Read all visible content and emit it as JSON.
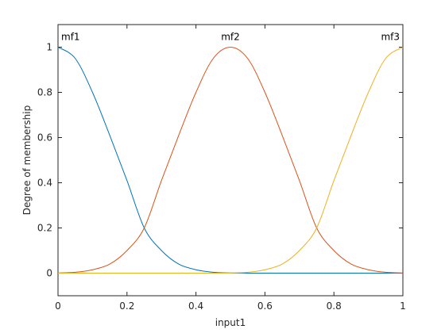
{
  "chart_data": {
    "type": "line",
    "xlabel": "input1",
    "ylabel": "Degree of membership",
    "xlim": [
      0,
      1
    ],
    "ylim": [
      -0.1,
      1.1
    ],
    "grid": false,
    "x_ticks": [
      0,
      0.2,
      0.4,
      0.6,
      0.8,
      1
    ],
    "x_tick_labels": [
      "0",
      "0.2",
      "0.4",
      "0.6",
      "0.8",
      "1"
    ],
    "y_ticks": [
      0,
      0.2,
      0.4,
      0.6,
      0.8,
      1
    ],
    "y_tick_labels": [
      "0",
      "0.2",
      "0.4",
      "0.6",
      "0.8",
      "1"
    ],
    "x": [
      0,
      0.05,
      0.1,
      0.15,
      0.2,
      0.25,
      0.3,
      0.35,
      0.4,
      0.45,
      0.5,
      0.55,
      0.6,
      0.65,
      0.7,
      0.75,
      0.8,
      0.85,
      0.9,
      0.95,
      1
    ],
    "series": [
      {
        "name": "mf1",
        "color": "#0072BD",
        "label_x": 0,
        "values": [
          1.0,
          0.95,
          0.8,
          0.61,
          0.41,
          0.2,
          0.1,
          0.04,
          0.015,
          0.004,
          0.001,
          0.0,
          0.0,
          0.0,
          0.0,
          0.0,
          0.0,
          0.0,
          0.0,
          0.0,
          0.0
        ]
      },
      {
        "name": "mf2",
        "color": "#D95319",
        "label_x": 0.5,
        "values": [
          0.001,
          0.004,
          0.015,
          0.04,
          0.1,
          0.2,
          0.41,
          0.61,
          0.8,
          0.95,
          1.0,
          0.95,
          0.8,
          0.61,
          0.41,
          0.2,
          0.1,
          0.04,
          0.015,
          0.004,
          0.001
        ]
      },
      {
        "name": "mf3",
        "color": "#EDB120",
        "label_x": 1,
        "values": [
          0.0,
          0.0,
          0.0,
          0.0,
          0.0,
          0.0,
          0.0,
          0.0,
          0.0,
          0.0,
          0.001,
          0.004,
          0.015,
          0.04,
          0.1,
          0.2,
          0.41,
          0.61,
          0.8,
          0.95,
          1.0
        ]
      }
    ]
  }
}
